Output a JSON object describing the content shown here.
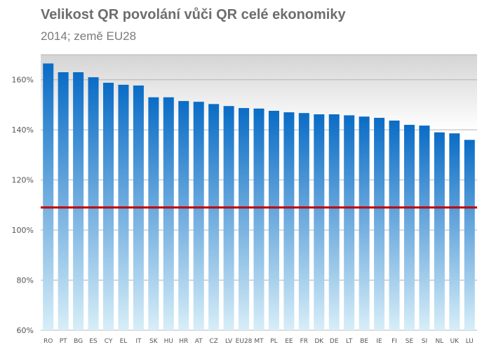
{
  "chart_data": {
    "type": "bar",
    "title": "Velikost QR povolání vůči QR celé ekonomiky",
    "subtitle": "2014; země EU28",
    "xlabel": "",
    "ylabel": "",
    "categories": [
      "RO",
      "PT",
      "BG",
      "ES",
      "CY",
      "EL",
      "IT",
      "SK",
      "HU",
      "HR",
      "AT",
      "CZ",
      "LV",
      "EU28",
      "MT",
      "PL",
      "EE",
      "FR",
      "DK",
      "DE",
      "LT",
      "BE",
      "IE",
      "FI",
      "SE",
      "SI",
      "NL",
      "UK",
      "LU"
    ],
    "values": [
      166.5,
      163,
      163,
      161,
      158.8,
      158,
      157.7,
      153,
      153,
      151.5,
      151.2,
      150.3,
      149.5,
      148.7,
      148.5,
      147.6,
      147,
      146.7,
      146.2,
      146.2,
      145.8,
      145.3,
      144.8,
      143.7,
      142,
      141.7,
      139,
      138.6,
      136
    ],
    "ylim": [
      60,
      170
    ],
    "yticks": [
      "60%",
      "80%",
      "100%",
      "120%",
      "140%",
      "160%"
    ],
    "ytick_values": [
      60,
      80,
      100,
      120,
      140,
      160
    ],
    "reference_line": 109,
    "grid": true,
    "legend": "none",
    "colors": {
      "bar_top": "#0a6cc6",
      "bar_bottom": "#d7eef8",
      "reference_line": "#c00000",
      "plot_band": "#dcdcdc",
      "gridline": "#b4b4b4"
    }
  }
}
